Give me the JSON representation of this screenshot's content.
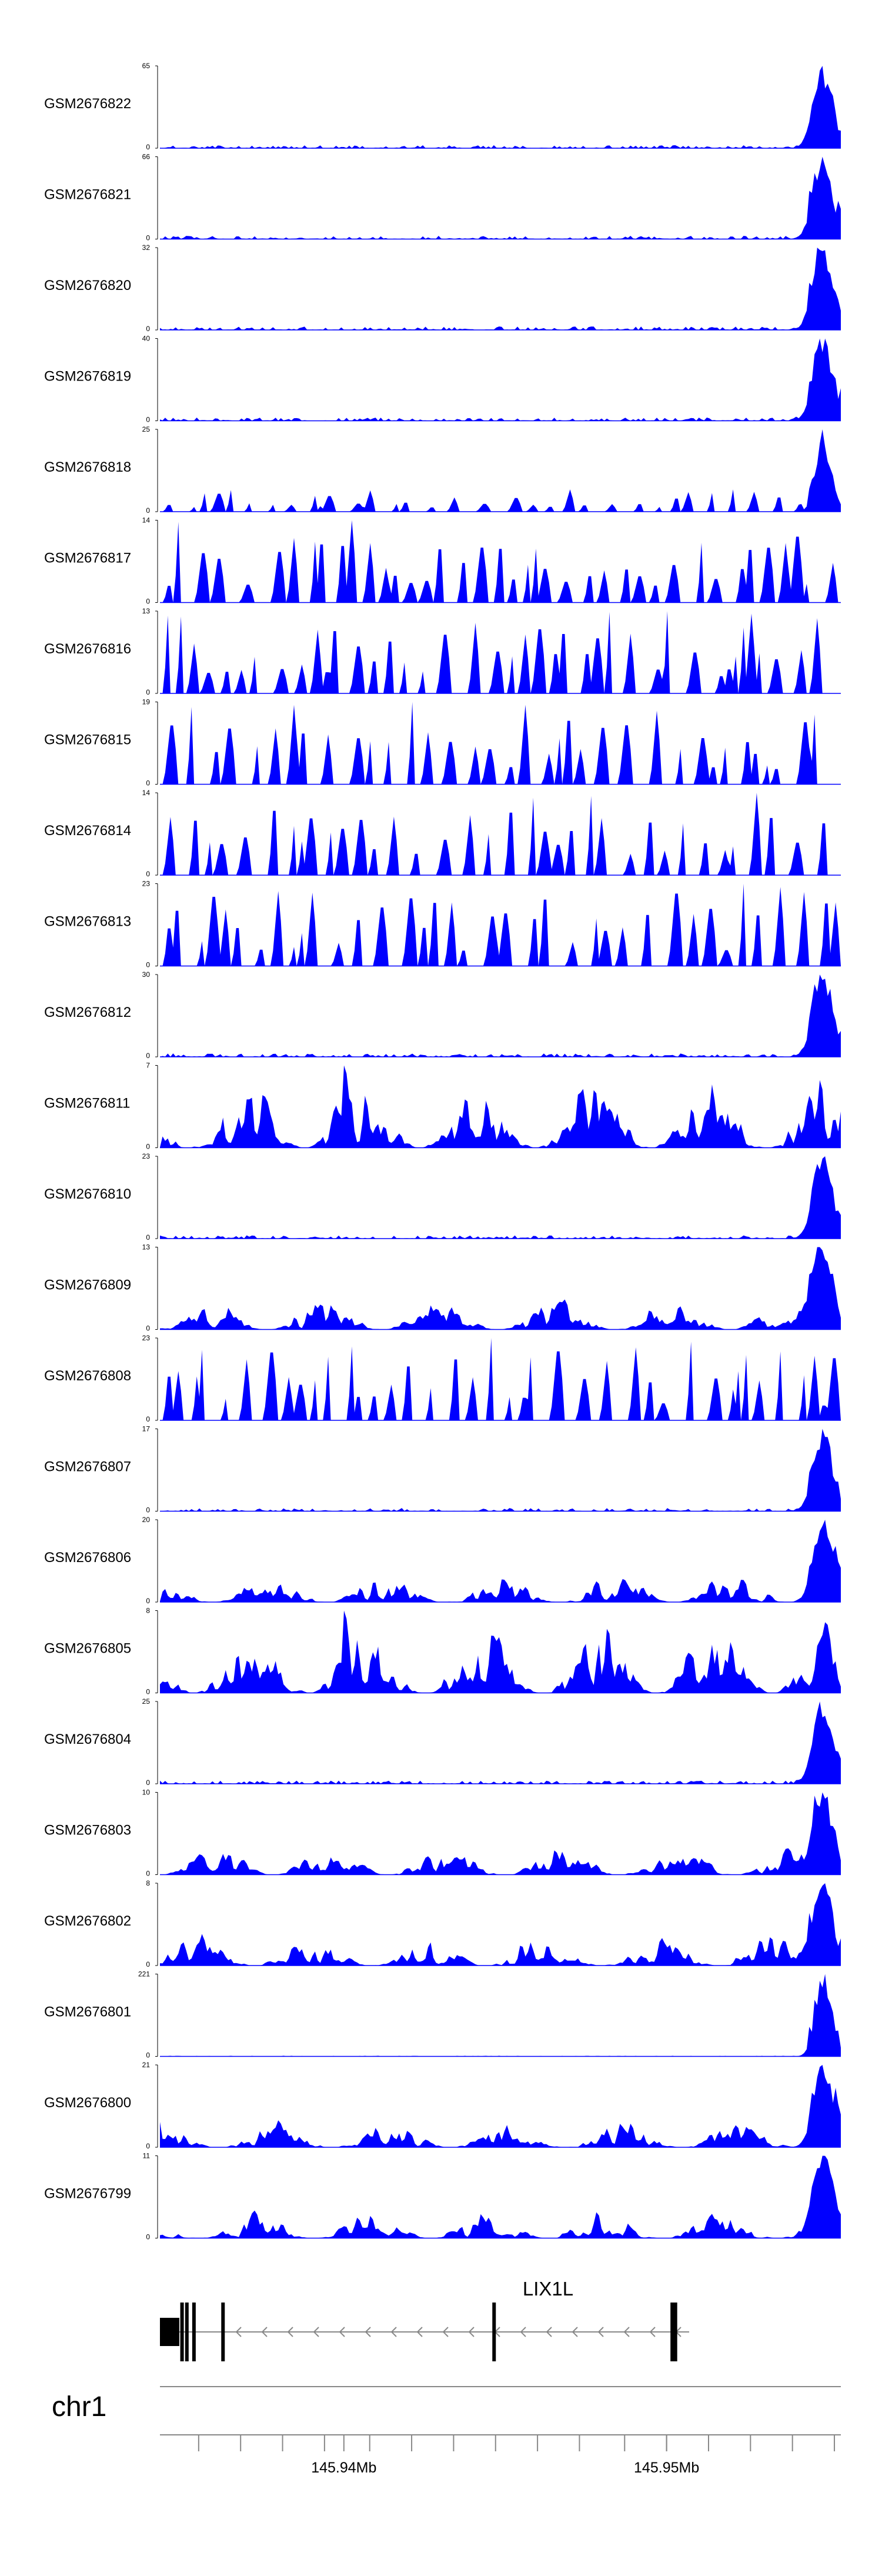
{
  "chart_data": {
    "type": "area",
    "title": "",
    "fill_color": "#0000ff",
    "axis_color": "#888888",
    "x_range": [
      145.9343,
      145.9554
    ],
    "x_unit": "Mb",
    "tracks": [
      {
        "name": "GSM2676822",
        "ymax": "65",
        "ymin": "0",
        "profile": "peak_end",
        "seed": 11
      },
      {
        "name": "GSM2676821",
        "ymax": "66",
        "ymin": "0",
        "profile": "peak_end",
        "seed": 12
      },
      {
        "name": "GSM2676820",
        "ymax": "32",
        "ymin": "0",
        "profile": "peak_end",
        "seed": 13
      },
      {
        "name": "GSM2676819",
        "ymax": "40",
        "ymin": "0",
        "profile": "peak_end",
        "seed": 14
      },
      {
        "name": "GSM2676818",
        "ymax": "25",
        "ymin": "0",
        "profile": "spiky_peak_end",
        "seed": 15
      },
      {
        "name": "GSM2676817",
        "ymax": "14",
        "ymin": "0",
        "profile": "spiky",
        "seed": 16
      },
      {
        "name": "GSM2676816",
        "ymax": "13",
        "ymin": "0",
        "profile": "spiky",
        "seed": 17
      },
      {
        "name": "GSM2676815",
        "ymax": "19",
        "ymin": "0",
        "profile": "spiky",
        "seed": 18
      },
      {
        "name": "GSM2676814",
        "ymax": "14",
        "ymin": "0",
        "profile": "spiky",
        "seed": 19
      },
      {
        "name": "GSM2676813",
        "ymax": "23",
        "ymin": "0",
        "profile": "spiky",
        "seed": 20
      },
      {
        "name": "GSM2676812",
        "ymax": "30",
        "ymin": "0",
        "profile": "peak_end",
        "seed": 21
      },
      {
        "name": "GSM2676811",
        "ymax": "7",
        "ymin": "0",
        "profile": "dense",
        "seed": 22
      },
      {
        "name": "GSM2676810",
        "ymax": "23",
        "ymin": "0",
        "profile": "peak_end",
        "seed": 23
      },
      {
        "name": "GSM2676809",
        "ymax": "13",
        "ymin": "0",
        "profile": "dense_peak_end",
        "seed": 24
      },
      {
        "name": "GSM2676808",
        "ymax": "23",
        "ymin": "0",
        "profile": "spiky",
        "seed": 25
      },
      {
        "name": "GSM2676807",
        "ymax": "17",
        "ymin": "0",
        "profile": "peak_end",
        "seed": 26
      },
      {
        "name": "GSM2676806",
        "ymax": "20",
        "ymin": "0",
        "profile": "dense_peak_end",
        "seed": 27
      },
      {
        "name": "GSM2676805",
        "ymax": "8",
        "ymin": "0",
        "profile": "dense",
        "seed": 28
      },
      {
        "name": "GSM2676804",
        "ymax": "25",
        "ymin": "0",
        "profile": "peak_end",
        "seed": 29
      },
      {
        "name": "GSM2676803",
        "ymax": "10",
        "ymin": "0",
        "profile": "dense_peak_end",
        "seed": 30
      },
      {
        "name": "GSM2676802",
        "ymax": "8",
        "ymin": "0",
        "profile": "dense_peak_end",
        "seed": 31
      },
      {
        "name": "GSM2676801",
        "ymax": "221",
        "ymin": "0",
        "profile": "single_peak",
        "seed": 32
      },
      {
        "name": "GSM2676800",
        "ymax": "21",
        "ymin": "0",
        "profile": "dense_peak_end",
        "seed": 33
      },
      {
        "name": "GSM2676799",
        "ymax": "11",
        "ymin": "0",
        "profile": "dense_peak_end",
        "seed": 34
      }
    ],
    "gene": {
      "name": "LIX1L",
      "strand": "-",
      "start_mb": 145.9343,
      "end_mb": 145.9507,
      "exons_mb": [
        [
          145.9343,
          145.9349
        ],
        [
          145.93493,
          145.93498
        ],
        [
          145.93508,
          145.93512
        ],
        [
          145.9353,
          145.93534
        ],
        [
          145.9362,
          145.93625
        ],
        [
          145.9446,
          145.94465
        ],
        [
          145.95012,
          145.9502
        ],
        [
          145.95022,
          145.9503
        ]
      ]
    },
    "axis": {
      "chromosome": "chr1",
      "ticks": [
        {
          "value": 145.94,
          "label": "145.94Mb"
        },
        {
          "value": 145.95,
          "label": "145.95Mb"
        }
      ],
      "minor_ticks": [
        145.9355,
        145.9368,
        145.9381,
        145.9394,
        145.9408,
        145.9421,
        145.9434,
        145.9447,
        145.946,
        145.9473,
        145.9487,
        145.95,
        145.9513,
        145.9526,
        145.9539,
        145.9552
      ]
    }
  }
}
